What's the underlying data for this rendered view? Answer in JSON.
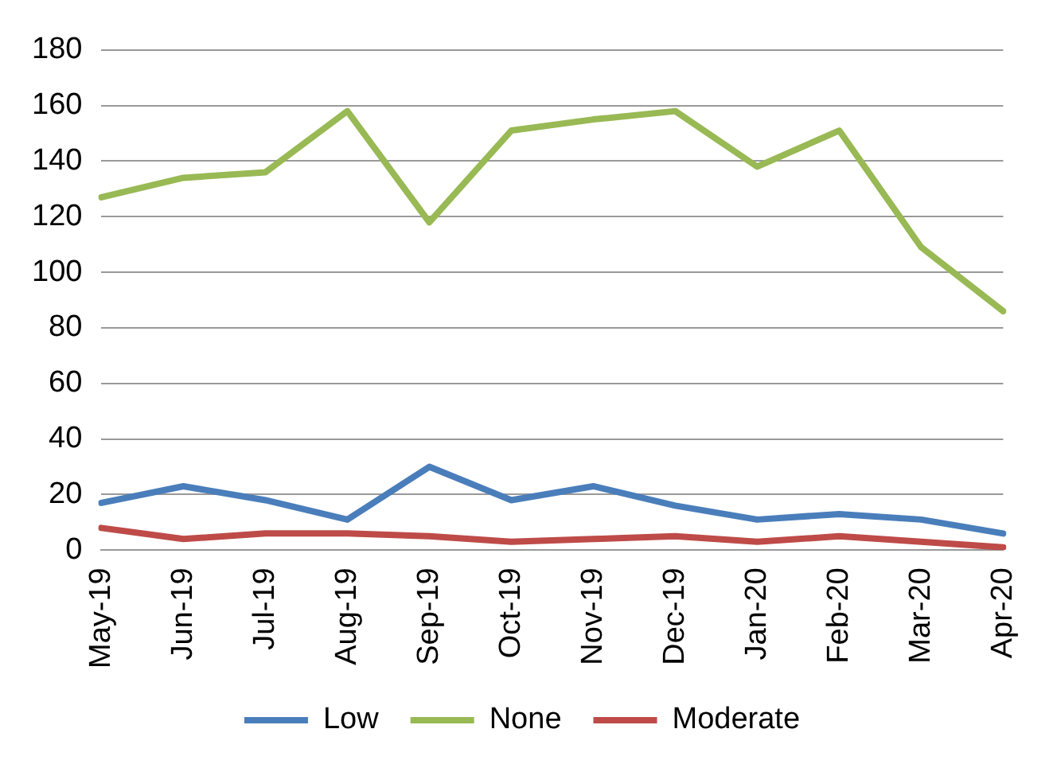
{
  "chart_data": {
    "type": "line",
    "categories": [
      "May-19",
      "Jun-19",
      "Jul-19",
      "Aug-19",
      "Sep-19",
      "Oct-19",
      "Nov-19",
      "Dec-19",
      "Jan-20",
      "Feb-20",
      "Mar-20",
      "Apr-20"
    ],
    "series": [
      {
        "name": "Low",
        "color": "#4a7ebb",
        "values": [
          17,
          23,
          18,
          11,
          30,
          18,
          23,
          16,
          11,
          13,
          11,
          6
        ]
      },
      {
        "name": "None",
        "color": "#98b954",
        "values": [
          127,
          134,
          136,
          158,
          118,
          151,
          155,
          158,
          138,
          151,
          109,
          86
        ]
      },
      {
        "name": "Moderate",
        "color": "#be4b48",
        "values": [
          8,
          4,
          6,
          6,
          5,
          3,
          4,
          5,
          3,
          5,
          3,
          1
        ]
      }
    ],
    "ylim": [
      0,
      180
    ],
    "yticks": [
      0,
      20,
      40,
      60,
      80,
      100,
      120,
      140,
      160,
      180
    ],
    "grid": "y",
    "legend": "bottom",
    "marker": "none",
    "line_style": "solid"
  }
}
